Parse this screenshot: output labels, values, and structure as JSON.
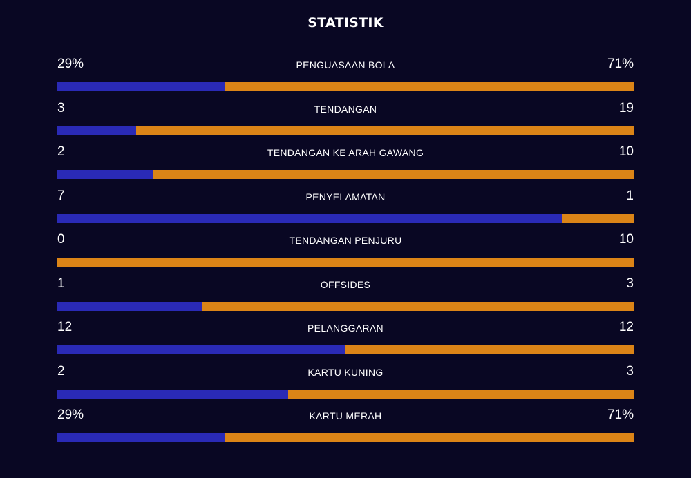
{
  "title": "STATISTIK",
  "colors": {
    "background": "#090723",
    "home_bar": "#2a2ab6",
    "away_bar": "#db8417"
  },
  "stats": [
    {
      "label": "PENGUASAAN BOLA",
      "home": "29%",
      "away": "71%",
      "home_fraction": 0.29
    },
    {
      "label": "TENDANGAN",
      "home": "3",
      "away": "19",
      "home_fraction": 0.1364
    },
    {
      "label": "TENDANGAN KE ARAH GAWANG",
      "home": "2",
      "away": "10",
      "home_fraction": 0.1667
    },
    {
      "label": "PENYELAMATAN",
      "home": "7",
      "away": "1",
      "home_fraction": 0.875
    },
    {
      "label": "TENDANGAN PENJURU",
      "home": "0",
      "away": "10",
      "home_fraction": 0.0
    },
    {
      "label": "OFFSIDES",
      "home": "1",
      "away": "3",
      "home_fraction": 0.25
    },
    {
      "label": "PELANGGARAN",
      "home": "12",
      "away": "12",
      "home_fraction": 0.5
    },
    {
      "label": "KARTU KUNING",
      "home": "2",
      "away": "3",
      "home_fraction": 0.4
    },
    {
      "label": "KARTU MERAH",
      "home": "29%",
      "away": "71%",
      "home_fraction": 0.29
    }
  ]
}
